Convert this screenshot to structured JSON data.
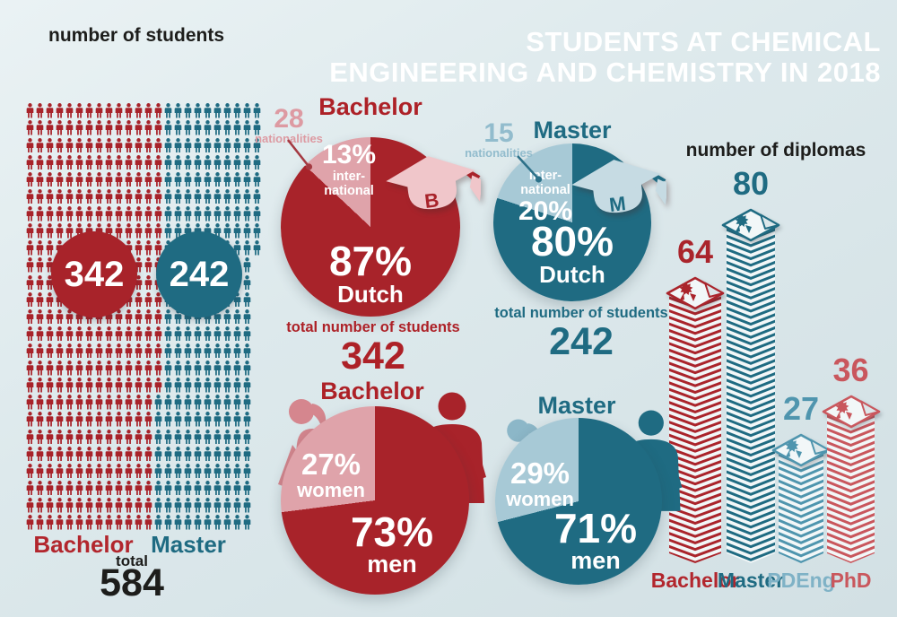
{
  "title": {
    "line1": "STUDENTS AT CHEMICAL",
    "line2": "ENGINEERING AND CHEMISTRY IN 2018"
  },
  "students": {
    "heading": "number of students",
    "bachelor": {
      "label": "Bachelor",
      "count": 342
    },
    "master": {
      "label": "Master",
      "count": 242
    },
    "total_label": "total",
    "total": 584
  },
  "nationality": {
    "bachelor": {
      "title": "Bachelor",
      "nat_count": "28",
      "nat_label": "nationalities",
      "international_pct": 13,
      "slice_pct_label": "13%",
      "slice_line1": "inter-",
      "slice_line2": "national",
      "main_pct_label": "87%",
      "main_label": "Dutch",
      "cap_letter": "B",
      "total_label": "total number of students",
      "total": "342"
    },
    "master": {
      "title": "Master",
      "nat_count": "15",
      "nat_label": "nationalities",
      "international_pct": 20,
      "slice_pct_label": "20%",
      "slice_line1": "inter-",
      "slice_line2": "national",
      "main_pct_label": "80%",
      "main_label": "Dutch",
      "cap_letter": "M",
      "total_label": "total number of students",
      "total": "242"
    }
  },
  "gender": {
    "bachelor": {
      "title": "Bachelor",
      "women_pct": 27,
      "women_pct_label": "27%",
      "women_label": "women",
      "men_pct_label": "73%",
      "men_label": "men"
    },
    "master": {
      "title": "Master",
      "women_pct": 29,
      "women_pct_label": "29%",
      "women_label": "women",
      "men_pct_label": "71%",
      "men_label": "men"
    }
  },
  "diplomas": {
    "heading": "number of diplomas",
    "bars": [
      {
        "label": "Bachelor",
        "value": 64,
        "color": "#aa242b",
        "label_color": "#b2262d"
      },
      {
        "label": "Master",
        "value": 80,
        "color": "#1f6b82",
        "label_color": "#1f6b82"
      },
      {
        "label": "PDEng",
        "value": 27,
        "color": "#4f95ae",
        "label_color": "#7fb2c6"
      },
      {
        "label": "PhD",
        "value": 36,
        "color": "#c9575d",
        "label_color": "#c9575d"
      }
    ]
  },
  "colors": {
    "red": "#a8232a",
    "pink": "#dfa3aa",
    "pink_figure": "#d5868e",
    "cap_pink": "#f0c6ca",
    "teal": "#1f6b82",
    "light_blue": "#a7c9d6",
    "light_blue_figure": "#8cb7c8",
    "cap_blue": "#c6dbe3",
    "pointer_red": "#a43a42",
    "pointer_teal": "#2d7189",
    "black": "#1d1d1b",
    "background": "#dde9ec"
  },
  "chart_data": [
    {
      "type": "bar",
      "style": "pictogram-grid",
      "title": "number of students",
      "categories": [
        "Bachelor",
        "Master"
      ],
      "values": [
        342,
        242
      ],
      "total": 584,
      "unit": "students"
    },
    {
      "type": "pie",
      "title": "Bachelor nationality",
      "labels": [
        "Dutch",
        "international"
      ],
      "values": [
        87,
        13
      ],
      "unit": "%",
      "nationalities": 28,
      "total_students": 342
    },
    {
      "type": "pie",
      "title": "Master nationality",
      "labels": [
        "Dutch",
        "international"
      ],
      "values": [
        80,
        20
      ],
      "unit": "%",
      "nationalities": 15,
      "total_students": 242
    },
    {
      "type": "pie",
      "title": "Bachelor gender",
      "labels": [
        "men",
        "women"
      ],
      "values": [
        73,
        27
      ],
      "unit": "%"
    },
    {
      "type": "pie",
      "title": "Master gender",
      "labels": [
        "men",
        "women"
      ],
      "values": [
        71,
        29
      ],
      "unit": "%"
    },
    {
      "type": "bar",
      "title": "number of diplomas",
      "categories": [
        "Bachelor",
        "Master",
        "PDEng",
        "PhD"
      ],
      "values": [
        64,
        80,
        27,
        36
      ]
    }
  ]
}
